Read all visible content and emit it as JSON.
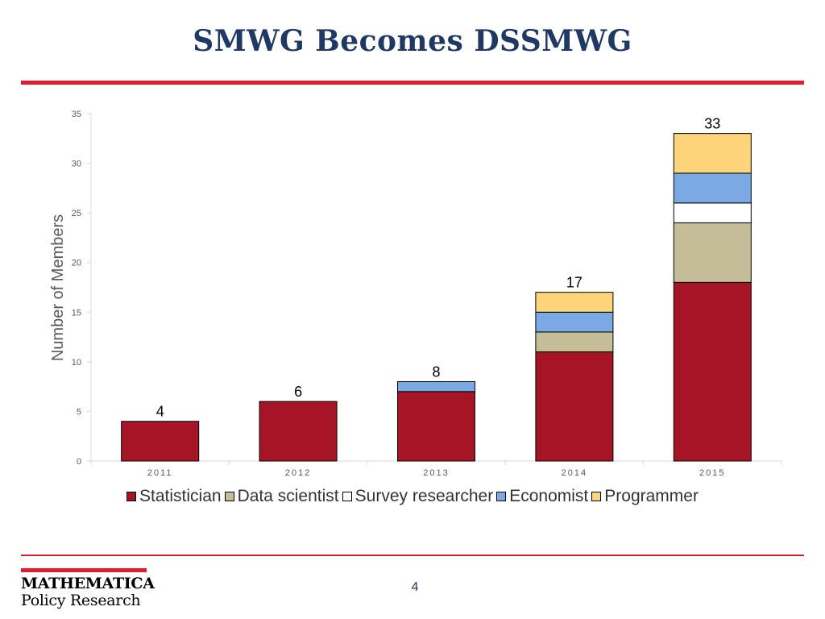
{
  "slide": {
    "title": "SMWG Becomes DSSMWG",
    "page_number": "4",
    "logo_line1": "MATHEMATICA",
    "logo_line2": "Policy Research"
  },
  "colors": {
    "accent": "#e31b2f",
    "title": "#1f3864"
  },
  "chart_data": {
    "type": "bar",
    "stacked": true,
    "categories": [
      "2011",
      "2012",
      "2013",
      "2014",
      "2015"
    ],
    "series": [
      {
        "name": "Statistician",
        "values": [
          4,
          6,
          7,
          11,
          18
        ],
        "color": "#a51526"
      },
      {
        "name": "Data scientist",
        "values": [
          0,
          0,
          0,
          2,
          6
        ],
        "color": "#c4bd97"
      },
      {
        "name": "Survey researcher",
        "values": [
          0,
          0,
          0,
          0,
          2
        ],
        "color": "#ffffff"
      },
      {
        "name": "Economist",
        "values": [
          0,
          0,
          1,
          2,
          3
        ],
        "color": "#7aa9e3"
      },
      {
        "name": "Programmer",
        "values": [
          0,
          0,
          0,
          2,
          4
        ],
        "color": "#fcd57b"
      }
    ],
    "totals": [
      4,
      6,
      8,
      17,
      33
    ],
    "ylabel": "Number of Members",
    "xlabel": "",
    "ylim": [
      0,
      35
    ],
    "yticks": [
      0,
      5,
      10,
      15,
      20,
      25,
      30,
      35
    ],
    "legend_position": "bottom",
    "grid": false
  }
}
